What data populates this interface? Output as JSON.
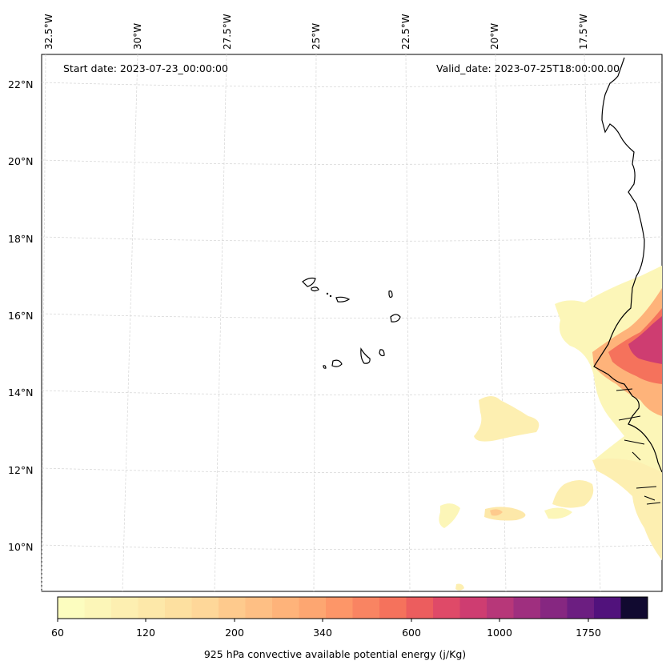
{
  "map": {
    "start_date": "Start date: 2023-07-23_00:00:00",
    "valid_date": "Valid_date: 2023-07-25T18:00:00.00",
    "lon_labels": [
      "32.5°W",
      "30°W",
      "27.5°W",
      "25°W",
      "22.5°W",
      "20°W",
      "17.5°W"
    ],
    "lat_labels": [
      "22°N",
      "20°N",
      "18°N",
      "16°N",
      "14°N",
      "12°N",
      "10°N"
    ],
    "gridlines": "dashed-light-gray",
    "features": [
      "Cape Verde islands",
      "West African coastline"
    ]
  },
  "colorbar": {
    "title": "925 hPa convective available potential energy (j/Kg)",
    "tick_labels": [
      "60",
      "120",
      "200",
      "340",
      "600",
      "1000",
      "1750"
    ],
    "colors": [
      "#fcfdbf",
      "#fcf6b8",
      "#fdefb1",
      "#fde8a9",
      "#fde0a0",
      "#fed799",
      "#feca8d",
      "#febf84",
      "#feb37a",
      "#fda671",
      "#fd9668",
      "#f98462",
      "#f5725c",
      "#ec5d5e",
      "#df4a68",
      "#ce3d71",
      "#b73779",
      "#9f2f7f",
      "#862781",
      "#6c1e81",
      "#51127c",
      "#110a30"
    ],
    "cmap": "magma_r"
  },
  "chart_data": {
    "type": "heatmap",
    "title": "",
    "variable": "925 hPa convective available potential energy (j/Kg)",
    "xlabel": "",
    "ylabel": "",
    "xlim": [
      "32.5°W",
      "16°W"
    ],
    "ylim": [
      "9°N",
      "22.5°N"
    ],
    "levels": [
      60,
      120,
      200,
      340,
      600,
      1000,
      1750
    ],
    "regions": [
      {
        "area": "Senegal / Gambia coast",
        "approx_max": 1000
      },
      {
        "area": "Offshore south of 13°N",
        "approx_max": 200
      }
    ]
  }
}
